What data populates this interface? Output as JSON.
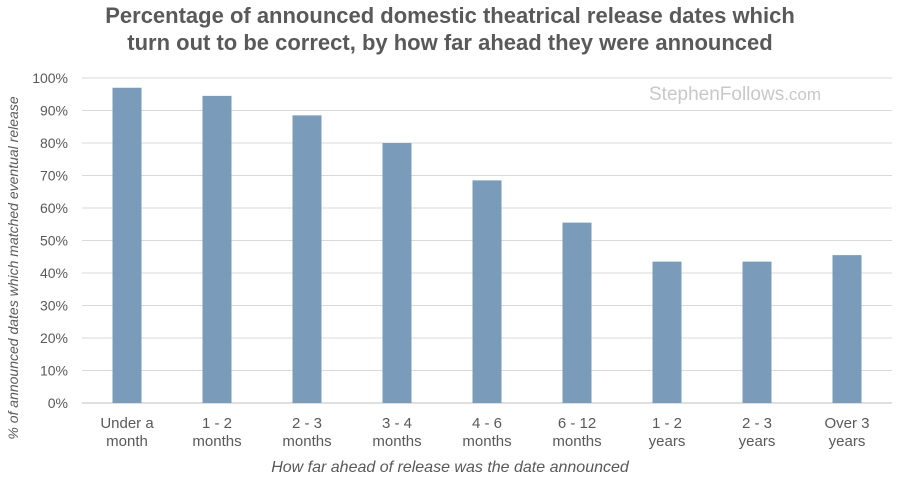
{
  "chart_data": {
    "type": "bar",
    "title_lines": [
      "Percentage of announced domestic theatrical release dates which",
      "turn out to be correct, by how far ahead they were announced"
    ],
    "xlabel": "How far ahead of release was the date announced",
    "ylabel": "% of announced dates which matched eventual release",
    "categories": [
      [
        "Under a",
        "month"
      ],
      [
        "1 - 2",
        "months"
      ],
      [
        "2 - 3",
        "months"
      ],
      [
        "3 - 4",
        "months"
      ],
      [
        "4 - 6",
        "months"
      ],
      [
        "6 - 12",
        "months"
      ],
      [
        "1 - 2",
        "years"
      ],
      [
        "2 - 3",
        "years"
      ],
      [
        "Over 3",
        "years"
      ]
    ],
    "values": [
      97,
      94.5,
      88.5,
      80,
      68.5,
      55.5,
      43.5,
      43.5,
      45.5
    ],
    "ylim": [
      0,
      100
    ],
    "yticks": [
      "0%",
      "10%",
      "20%",
      "30%",
      "40%",
      "50%",
      "60%",
      "70%",
      "80%",
      "90%",
      "100%"
    ],
    "grid": true,
    "legend": "none",
    "bar_color": "#7a9cba"
  },
  "watermark": {
    "name": "StephenFollows",
    "domain": ".com"
  }
}
